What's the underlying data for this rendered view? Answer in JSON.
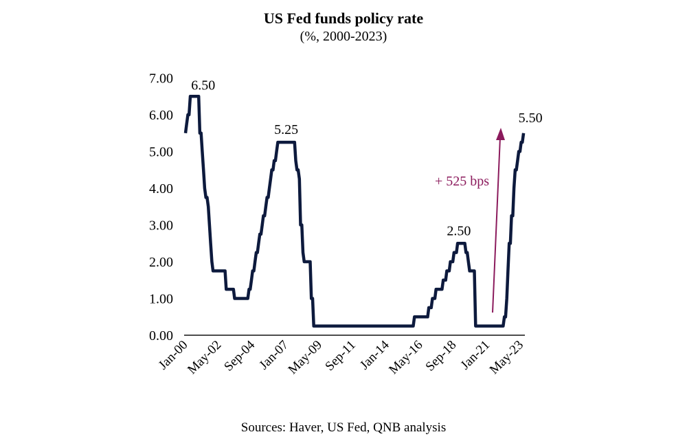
{
  "chart_data": {
    "type": "line",
    "title": "US Fed funds policy rate",
    "subtitle": "(%, 2000-2023)",
    "source": "Sources: Haver, US Fed, QNB analysis",
    "xlabel": "",
    "ylabel": "",
    "ylim": [
      0,
      7
    ],
    "yticks": [
      "0.00",
      "1.00",
      "2.00",
      "3.00",
      "4.00",
      "5.00",
      "6.00",
      "7.00"
    ],
    "xticks": [
      "Jan-00",
      "May-02",
      "Sep-04",
      "Jan-07",
      "May-09",
      "Sep-11",
      "Jan-14",
      "May-16",
      "Sep-18",
      "Jan-21",
      "May-23"
    ],
    "xrange": [
      "Jan-00",
      "Jul-23"
    ],
    "frequency": "monthly",
    "grid": false,
    "line_color": "#0d1a3d",
    "annotation_color": "#8b1a5c",
    "values_by_year": {
      "2000": [
        5.5,
        5.75,
        6.0,
        6.0,
        6.5,
        6.5,
        6.5,
        6.5,
        6.5,
        6.5,
        6.5,
        6.5
      ],
      "2001": [
        5.5,
        5.5,
        5.0,
        4.5,
        4.0,
        3.75,
        3.75,
        3.5,
        3.0,
        2.5,
        2.0,
        1.75
      ],
      "2002": [
        1.75,
        1.75,
        1.75,
        1.75,
        1.75,
        1.75,
        1.75,
        1.75,
        1.75,
        1.75,
        1.25,
        1.25
      ],
      "2003": [
        1.25,
        1.25,
        1.25,
        1.25,
        1.25,
        1.0,
        1.0,
        1.0,
        1.0,
        1.0,
        1.0,
        1.0
      ],
      "2004": [
        1.0,
        1.0,
        1.0,
        1.0,
        1.0,
        1.25,
        1.25,
        1.5,
        1.75,
        1.75,
        2.0,
        2.25
      ],
      "2005": [
        2.25,
        2.5,
        2.75,
        2.75,
        3.0,
        3.25,
        3.25,
        3.5,
        3.75,
        3.75,
        4.0,
        4.25
      ],
      "2006": [
        4.5,
        4.5,
        4.75,
        4.75,
        5.0,
        5.25,
        5.25,
        5.25,
        5.25,
        5.25,
        5.25,
        5.25
      ],
      "2007": [
        5.25,
        5.25,
        5.25,
        5.25,
        5.25,
        5.25,
        5.25,
        5.25,
        4.75,
        4.5,
        4.5,
        4.25
      ],
      "2008": [
        3.0,
        3.0,
        2.25,
        2.0,
        2.0,
        2.0,
        2.0,
        2.0,
        2.0,
        1.0,
        1.0,
        0.25
      ],
      "2009": [
        0.25,
        0.25,
        0.25,
        0.25,
        0.25,
        0.25,
        0.25,
        0.25,
        0.25,
        0.25,
        0.25,
        0.25
      ],
      "2010": [
        0.25,
        0.25,
        0.25,
        0.25,
        0.25,
        0.25,
        0.25,
        0.25,
        0.25,
        0.25,
        0.25,
        0.25
      ],
      "2011": [
        0.25,
        0.25,
        0.25,
        0.25,
        0.25,
        0.25,
        0.25,
        0.25,
        0.25,
        0.25,
        0.25,
        0.25
      ],
      "2012": [
        0.25,
        0.25,
        0.25,
        0.25,
        0.25,
        0.25,
        0.25,
        0.25,
        0.25,
        0.25,
        0.25,
        0.25
      ],
      "2013": [
        0.25,
        0.25,
        0.25,
        0.25,
        0.25,
        0.25,
        0.25,
        0.25,
        0.25,
        0.25,
        0.25,
        0.25
      ],
      "2014": [
        0.25,
        0.25,
        0.25,
        0.25,
        0.25,
        0.25,
        0.25,
        0.25,
        0.25,
        0.25,
        0.25,
        0.25
      ],
      "2015": [
        0.25,
        0.25,
        0.25,
        0.25,
        0.25,
        0.25,
        0.25,
        0.25,
        0.25,
        0.25,
        0.25,
        0.5
      ],
      "2016": [
        0.5,
        0.5,
        0.5,
        0.5,
        0.5,
        0.5,
        0.5,
        0.5,
        0.5,
        0.5,
        0.5,
        0.75
      ],
      "2017": [
        0.75,
        0.75,
        1.0,
        1.0,
        1.0,
        1.25,
        1.25,
        1.25,
        1.25,
        1.25,
        1.25,
        1.5
      ],
      "2018": [
        1.5,
        1.5,
        1.75,
        1.75,
        1.75,
        2.0,
        2.0,
        2.0,
        2.25,
        2.25,
        2.25,
        2.5
      ],
      "2019": [
        2.5,
        2.5,
        2.5,
        2.5,
        2.5,
        2.5,
        2.25,
        2.25,
        2.0,
        1.75,
        1.75,
        1.75
      ],
      "2020": [
        1.75,
        1.75,
        0.25,
        0.25,
        0.25,
        0.25,
        0.25,
        0.25,
        0.25,
        0.25,
        0.25,
        0.25
      ],
      "2021": [
        0.25,
        0.25,
        0.25,
        0.25,
        0.25,
        0.25,
        0.25,
        0.25,
        0.25,
        0.25,
        0.25,
        0.25
      ],
      "2022": [
        0.25,
        0.25,
        0.5,
        0.5,
        1.0,
        1.75,
        2.5,
        2.5,
        3.25,
        3.25,
        4.0,
        4.5
      ],
      "2023": [
        4.5,
        4.75,
        5.0,
        5.0,
        5.25,
        5.25,
        5.5
      ]
    },
    "annotations": [
      {
        "text": "6.50",
        "date": "2000-06",
        "value": 6.5
      },
      {
        "text": "5.25",
        "date": "2007-01",
        "value": 5.25
      },
      {
        "text": "2.50",
        "date": "2019-01",
        "value": 2.5
      },
      {
        "text": "5.50",
        "date": "2023-07",
        "value": 5.5
      }
    ],
    "arrow_label": "+ 525 bps"
  }
}
